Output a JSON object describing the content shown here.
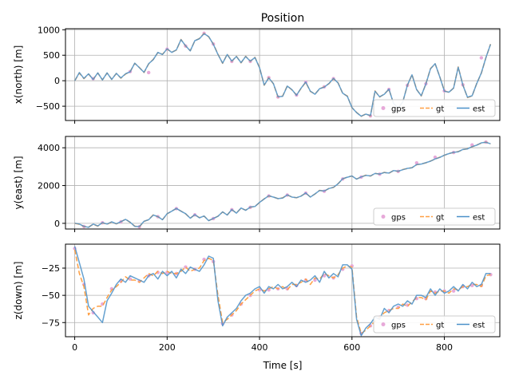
{
  "figure": {
    "title": "Position",
    "xlabel": "Time [s]"
  },
  "colors": {
    "gps": "#e7a9d9",
    "gt": "#ff9f43",
    "est": "#4a90c8",
    "grid": "#b0b0b0"
  },
  "chart_data": [
    {
      "type": "line",
      "ylabel": "x(north) [m]",
      "xlim": [
        -20,
        920
      ],
      "ylim": [
        -780,
        1020
      ],
      "xticks": [
        0,
        200,
        400,
        600,
        800
      ],
      "yticks": [
        -500,
        0,
        500,
        1000
      ],
      "grid": true,
      "legend": {
        "position": "lower-right",
        "entries": [
          "gps",
          "gt",
          "est"
        ]
      },
      "x": [
        0,
        10,
        20,
        30,
        40,
        50,
        60,
        70,
        80,
        90,
        100,
        110,
        120,
        130,
        140,
        150,
        160,
        170,
        180,
        190,
        200,
        210,
        220,
        230,
        240,
        250,
        260,
        270,
        280,
        290,
        300,
        310,
        320,
        330,
        340,
        350,
        360,
        370,
        380,
        390,
        400,
        410,
        420,
        430,
        440,
        450,
        460,
        470,
        480,
        490,
        500,
        510,
        520,
        530,
        540,
        550,
        560,
        570,
        580,
        590,
        600,
        610,
        620,
        630,
        640,
        650,
        660,
        670,
        680,
        690,
        700,
        710,
        720,
        730,
        740,
        750,
        760,
        770,
        780,
        790,
        800,
        810,
        820,
        830,
        840,
        850,
        860,
        870,
        880,
        890,
        900
      ],
      "series": [
        {
          "name": "gt",
          "values": [
            0,
            150,
            40,
            130,
            30,
            150,
            20,
            150,
            30,
            140,
            50,
            130,
            180,
            340,
            260,
            160,
            330,
            420,
            550,
            520,
            620,
            560,
            600,
            810,
            680,
            590,
            780,
            830,
            930,
            860,
            720,
            520,
            340,
            520,
            380,
            480,
            350,
            480,
            380,
            460,
            260,
            -90,
            60,
            -60,
            -320,
            -300,
            -100,
            -180,
            -280,
            -150,
            -30,
            -210,
            -260,
            -160,
            -120,
            -60,
            40,
            -40,
            -250,
            -300,
            -530,
            -620,
            -700,
            -650,
            -690,
            -200,
            -320,
            -260,
            -170,
            -440,
            -540,
            -410,
            -90,
            120,
            -170,
            -300,
            -60,
            240,
            330,
            80,
            -200,
            -230,
            -140,
            270,
            -80,
            -330,
            -300,
            -50,
            150,
            450,
            720
          ]
        },
        {
          "name": "est",
          "values": [
            0,
            160,
            45,
            135,
            25,
            155,
            15,
            155,
            25,
            145,
            55,
            135,
            175,
            345,
            255,
            165,
            335,
            415,
            555,
            515,
            625,
            555,
            605,
            805,
            685,
            585,
            785,
            825,
            925,
            865,
            715,
            515,
            345,
            515,
            385,
            475,
            355,
            475,
            385,
            455,
            255,
            -85,
            55,
            -55,
            -315,
            -305,
            -105,
            -175,
            -285,
            -145,
            -25,
            -205,
            -265,
            -155,
            -125,
            -55,
            45,
            -45,
            -245,
            -305,
            -525,
            -625,
            -695,
            -655,
            -685,
            -205,
            -315,
            -265,
            -165,
            -445,
            -535,
            -415,
            -85,
            115,
            -175,
            -295,
            -65,
            235,
            335,
            75,
            -205,
            -225,
            -145,
            265,
            -85,
            -325,
            -295,
            -55,
            155,
            455,
            715
          ]
        }
      ],
      "gps": {
        "x": [
          40,
          120,
          160,
          200,
          240,
          280,
          300,
          340,
          380,
          420,
          440,
          480,
          500,
          540,
          560,
          640,
          680,
          720,
          760,
          800,
          840,
          880
        ],
        "y": [
          40,
          180,
          160,
          620,
          680,
          930,
          720,
          380,
          380,
          60,
          -320,
          -280,
          -30,
          -120,
          40,
          -690,
          -170,
          -90,
          -60,
          -200,
          -80,
          450
        ]
      }
    },
    {
      "type": "line",
      "ylabel": "y(east) [m]",
      "xlim": [
        -20,
        920
      ],
      "ylim": [
        -300,
        4600
      ],
      "xticks": [
        0,
        200,
        400,
        600,
        800
      ],
      "yticks": [
        0,
        2000,
        4000
      ],
      "grid": true,
      "legend": {
        "position": "lower-right",
        "entries": [
          "gps",
          "gt",
          "est"
        ]
      },
      "x": [
        0,
        10,
        20,
        30,
        40,
        50,
        60,
        70,
        80,
        90,
        100,
        110,
        120,
        130,
        140,
        150,
        160,
        170,
        180,
        190,
        200,
        210,
        220,
        230,
        240,
        250,
        260,
        270,
        280,
        290,
        300,
        310,
        320,
        330,
        340,
        350,
        360,
        370,
        380,
        390,
        400,
        410,
        420,
        430,
        440,
        450,
        460,
        470,
        480,
        490,
        500,
        510,
        520,
        530,
        540,
        550,
        560,
        570,
        580,
        590,
        600,
        610,
        620,
        630,
        640,
        650,
        660,
        670,
        680,
        690,
        700,
        710,
        720,
        730,
        740,
        750,
        760,
        770,
        780,
        790,
        800,
        810,
        820,
        830,
        840,
        850,
        860,
        870,
        880,
        890,
        900
      ],
      "series": [
        {
          "name": "gt",
          "values": [
            0,
            -50,
            -170,
            -200,
            -50,
            -150,
            30,
            -50,
            70,
            -30,
            80,
            220,
            50,
            -150,
            -180,
            100,
            200,
            450,
            350,
            200,
            500,
            650,
            780,
            650,
            500,
            280,
            450,
            300,
            380,
            150,
            250,
            380,
            600,
            450,
            720,
            550,
            800,
            700,
            850,
            900,
            1100,
            1300,
            1450,
            1400,
            1300,
            1350,
            1500,
            1400,
            1350,
            1450,
            1600,
            1400,
            1550,
            1750,
            1700,
            1850,
            1900,
            2100,
            2350,
            2450,
            2500,
            2350,
            2450,
            2550,
            2500,
            2650,
            2600,
            2700,
            2650,
            2800,
            2750,
            2850,
            2900,
            2950,
            3100,
            3150,
            3200,
            3300,
            3400,
            3500,
            3600,
            3700,
            3750,
            3800,
            3900,
            3950,
            4050,
            4150,
            4250,
            4300,
            4200
          ]
        },
        {
          "name": "est",
          "values": [
            10,
            -40,
            -160,
            -210,
            -40,
            -140,
            40,
            -40,
            80,
            -20,
            90,
            210,
            60,
            -160,
            -170,
            110,
            190,
            440,
            360,
            190,
            510,
            640,
            790,
            640,
            510,
            270,
            460,
            290,
            390,
            140,
            260,
            370,
            610,
            440,
            730,
            540,
            810,
            690,
            860,
            890,
            1110,
            1290,
            1460,
            1390,
            1310,
            1340,
            1510,
            1390,
            1360,
            1440,
            1610,
            1390,
            1560,
            1740,
            1710,
            1840,
            1910,
            2090,
            2360,
            2440,
            2510,
            2340,
            2460,
            2540,
            2510,
            2640,
            2610,
            2690,
            2660,
            2790,
            2760,
            2840,
            2910,
            2940,
            3110,
            3140,
            3210,
            3290,
            3410,
            3490,
            3610,
            3690,
            3760,
            3790,
            3910,
            3940,
            4060,
            4140,
            4260,
            4290,
            4210
          ]
        }
      ],
      "gps": {
        "x": [
          20,
          60,
          100,
          140,
          180,
          220,
          260,
          300,
          340,
          380,
          420,
          460,
          500,
          540,
          580,
          620,
          660,
          700,
          740,
          780,
          820,
          860,
          890
        ],
        "y": [
          -170,
          30,
          80,
          -180,
          350,
          780,
          450,
          250,
          720,
          850,
          1450,
          1500,
          1600,
          1700,
          2350,
          2450,
          2600,
          2750,
          3200,
          3500,
          3750,
          4150,
          4300
        ]
      }
    },
    {
      "type": "line",
      "ylabel": "z(down) [m]",
      "xlim": [
        -20,
        920
      ],
      "ylim": [
        -88,
        -3
      ],
      "xticks": [
        0,
        200,
        400,
        600,
        800
      ],
      "yticks": [
        -25,
        -50,
        -75
      ],
      "grid": true,
      "legend": {
        "position": "lower-right",
        "entries": [
          "gps",
          "gt",
          "est"
        ]
      },
      "x": [
        0,
        10,
        20,
        30,
        40,
        50,
        60,
        70,
        80,
        90,
        100,
        110,
        120,
        130,
        140,
        150,
        160,
        170,
        180,
        190,
        200,
        210,
        220,
        230,
        240,
        250,
        260,
        270,
        280,
        290,
        300,
        310,
        320,
        330,
        340,
        350,
        360,
        370,
        380,
        390,
        400,
        410,
        420,
        430,
        440,
        450,
        460,
        470,
        480,
        490,
        500,
        510,
        520,
        530,
        540,
        550,
        560,
        570,
        580,
        590,
        600,
        610,
        620,
        630,
        640,
        650,
        660,
        670,
        680,
        690,
        700,
        710,
        720,
        730,
        740,
        750,
        760,
        770,
        780,
        790,
        800,
        810,
        820,
        830,
        840,
        850,
        860,
        870,
        880,
        890,
        900
      ],
      "series": [
        {
          "name": "gt",
          "values": [
            -8,
            -30,
            -42,
            -68,
            -62,
            -60,
            -60,
            -52,
            -45,
            -42,
            -38,
            -33,
            -36,
            -36,
            -38,
            -34,
            -30,
            -32,
            -28,
            -30,
            -28,
            -30,
            -30,
            -28,
            -24,
            -28,
            -26,
            -25,
            -18,
            -16,
            -18,
            -50,
            -75,
            -72,
            -68,
            -64,
            -58,
            -54,
            -50,
            -46,
            -44,
            -46,
            -44,
            -42,
            -44,
            -42,
            -45,
            -40,
            -40,
            -38,
            -35,
            -40,
            -34,
            -35,
            -30,
            -32,
            -34,
            -31,
            -25,
            -23,
            -24,
            -70,
            -85,
            -82,
            -78,
            -74,
            -70,
            -66,
            -64,
            -62,
            -62,
            -58,
            -60,
            -56,
            -52,
            -52,
            -54,
            -46,
            -48,
            -46,
            -46,
            -48,
            -44,
            -45,
            -42,
            -42,
            -40,
            -40,
            -42,
            -32,
            -31
          ]
        },
        {
          "name": "est",
          "values": [
            -5,
            -20,
            -35,
            -60,
            -65,
            -70,
            -75,
            -55,
            -48,
            -40,
            -35,
            -38,
            -32,
            -34,
            -36,
            -38,
            -32,
            -30,
            -35,
            -28,
            -32,
            -28,
            -34,
            -26,
            -30,
            -24,
            -26,
            -28,
            -22,
            -14,
            -16,
            -55,
            -78,
            -70,
            -66,
            -62,
            -55,
            -50,
            -48,
            -44,
            -42,
            -48,
            -42,
            -44,
            -40,
            -44,
            -42,
            -38,
            -42,
            -36,
            -38,
            -36,
            -32,
            -38,
            -28,
            -34,
            -30,
            -33,
            -22,
            -22,
            -26,
            -72,
            -87,
            -80,
            -76,
            -70,
            -72,
            -62,
            -66,
            -60,
            -58,
            -60,
            -55,
            -58,
            -50,
            -50,
            -52,
            -44,
            -50,
            -44,
            -48,
            -46,
            -42,
            -46,
            -40,
            -44,
            -38,
            -42,
            -40,
            -30,
            -30
          ]
        }
      ],
      "gps": {
        "x": [
          0,
          20,
          40,
          60,
          80,
          100,
          120,
          140,
          160,
          180,
          200,
          220,
          240,
          260,
          280,
          300,
          320,
          340,
          360,
          380,
          400,
          420,
          440,
          460,
          480,
          500,
          520,
          540,
          560,
          580,
          600,
          620,
          640,
          660,
          680,
          700,
          720,
          740,
          760,
          780,
          800,
          820,
          840,
          860,
          880,
          900
        ],
        "y": [
          -7,
          -40,
          -66,
          -58,
          -44,
          -37,
          -35,
          -37,
          -32,
          -29,
          -29,
          -30,
          -24,
          -26,
          -17,
          -19,
          -76,
          -68,
          -58,
          -50,
          -45,
          -45,
          -44,
          -44,
          -41,
          -36,
          -36,
          -32,
          -34,
          -26,
          -23,
          -85,
          -78,
          -70,
          -64,
          -61,
          -59,
          -53,
          -53,
          -47,
          -46,
          -46,
          -42,
          -41,
          -41,
          -31
        ]
      }
    }
  ]
}
